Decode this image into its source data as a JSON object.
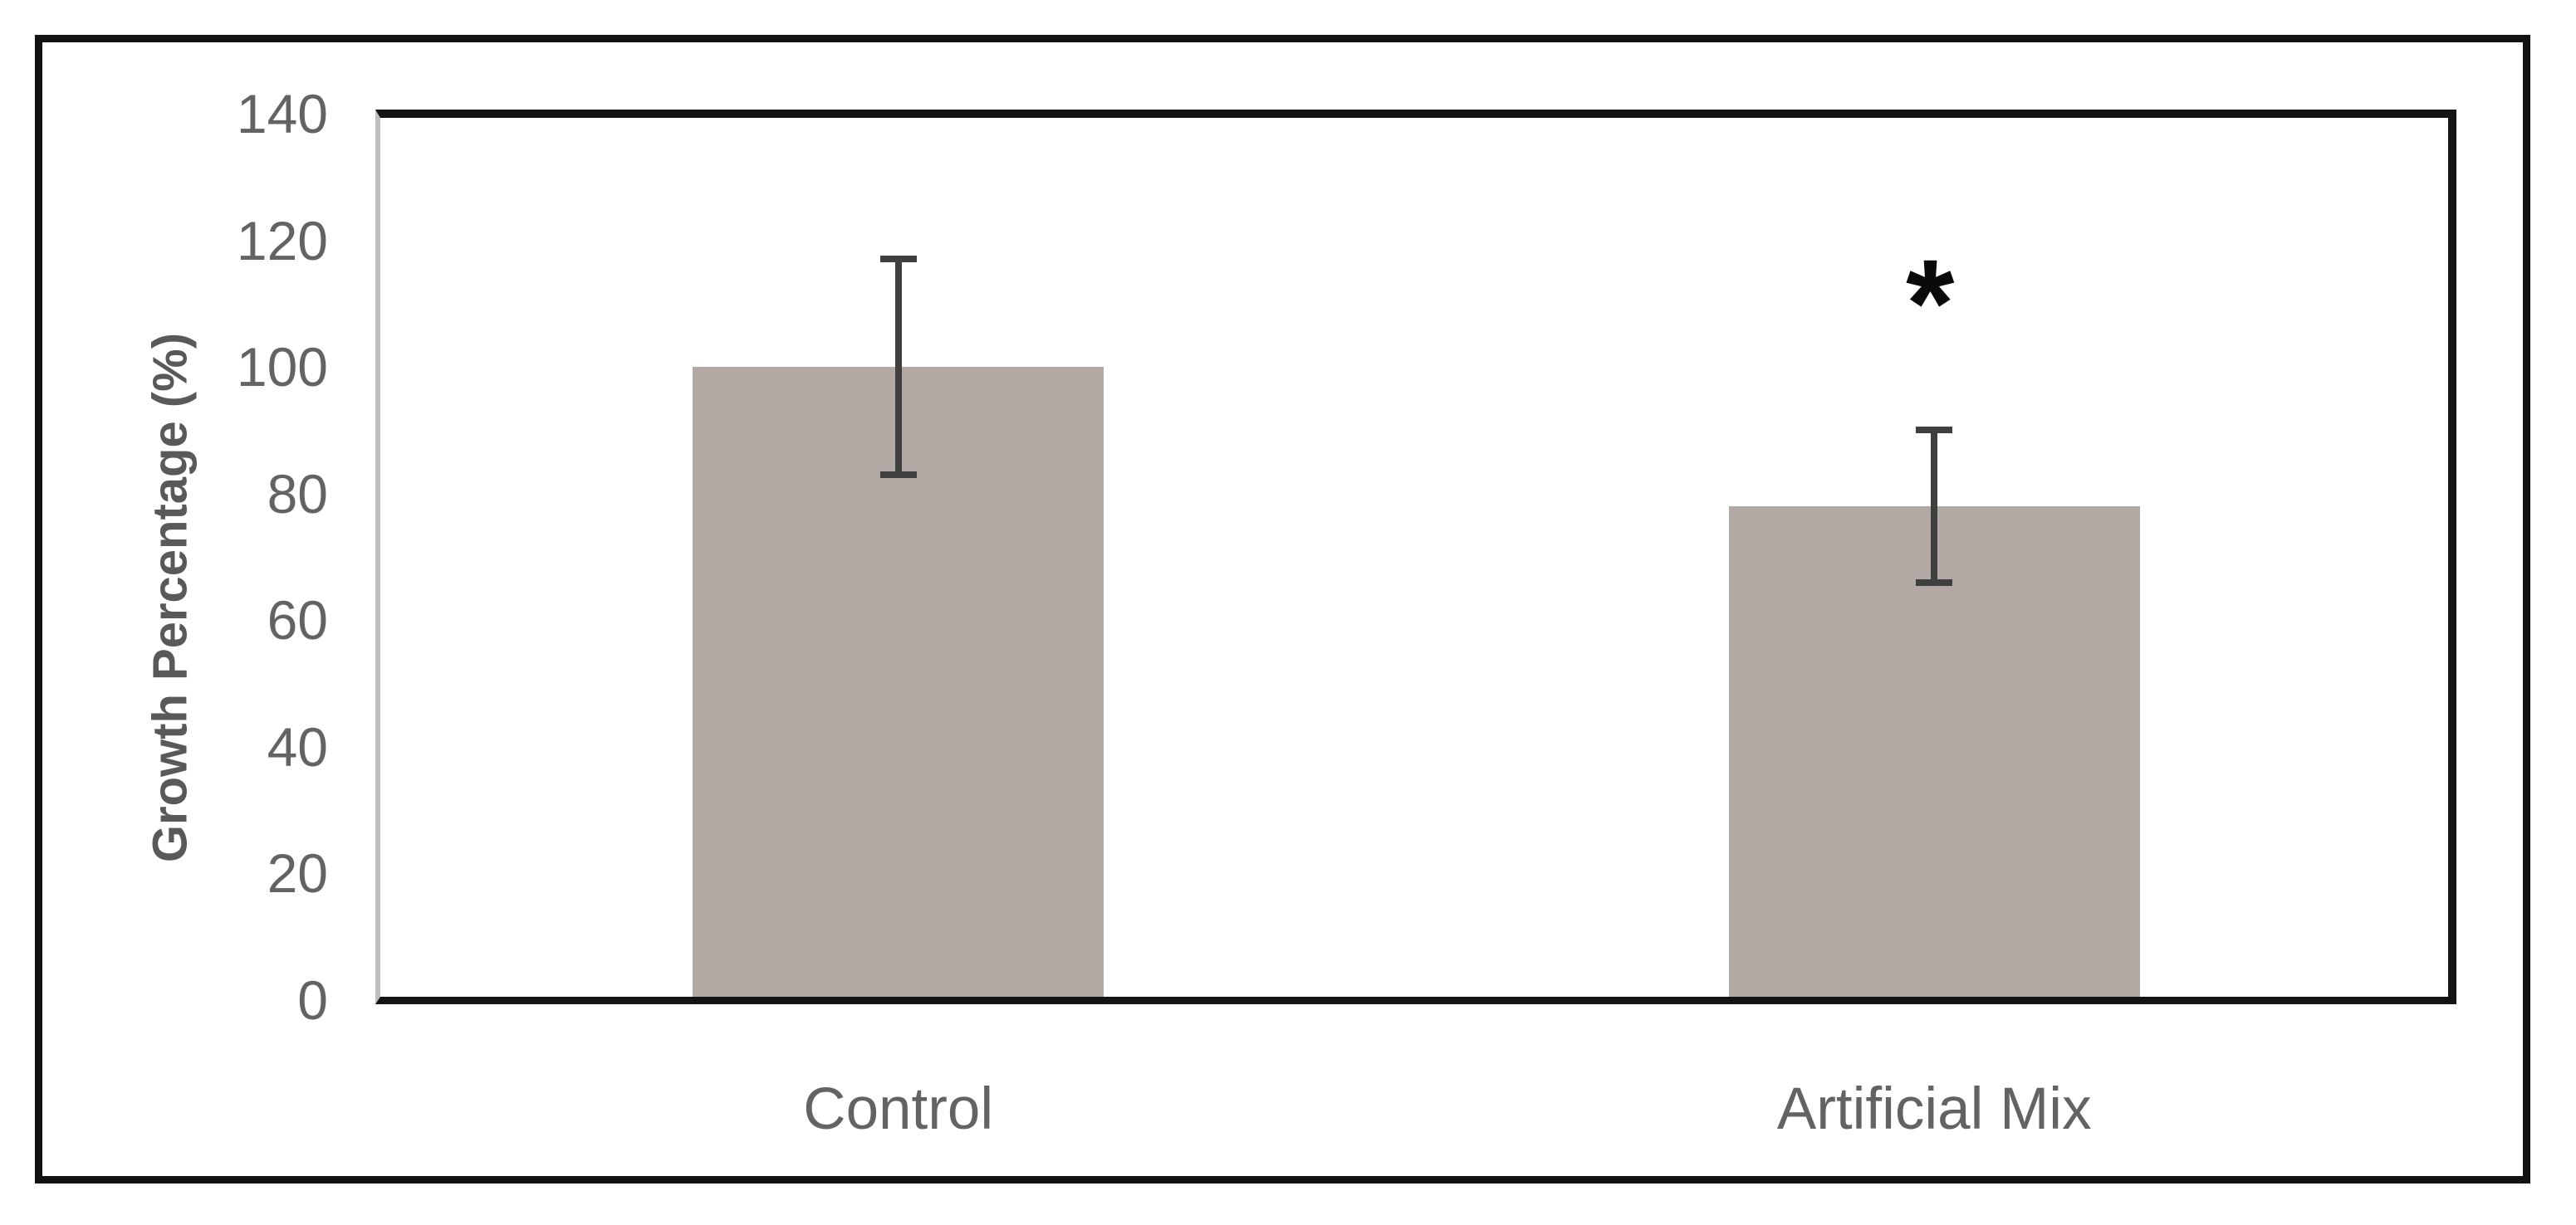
{
  "figure": {
    "background_color": "#ffffff",
    "outer_border_color": "#121212",
    "plot_border_color": "#141414",
    "y_axis_line_color": "#c1bfbd",
    "text_color": "#636363",
    "title_color": "#595959"
  },
  "chart_data": {
    "type": "bar",
    "title": "",
    "xlabel": "",
    "ylabel": "Growth Percentage (%)",
    "categories": [
      "Control",
      "Artificial Mix"
    ],
    "values": [
      100,
      78
    ],
    "error_low": [
      83,
      66
    ],
    "error_high": [
      117,
      90
    ],
    "yticks": [
      0,
      20,
      40,
      60,
      80,
      100,
      120,
      140
    ],
    "ytick_labels": [
      "0",
      "20",
      "40",
      "60",
      "80",
      "100",
      "120",
      "140"
    ],
    "ylim": [
      0,
      140
    ],
    "grid": false,
    "legend": "none",
    "bar_color": "#b2a9a5",
    "error_bar_color": "#3f3f3f",
    "annotations": [
      {
        "category_index": 1,
        "text": "*",
        "color": "#0a0a0a",
        "meaning": "statistically significant"
      }
    ]
  }
}
